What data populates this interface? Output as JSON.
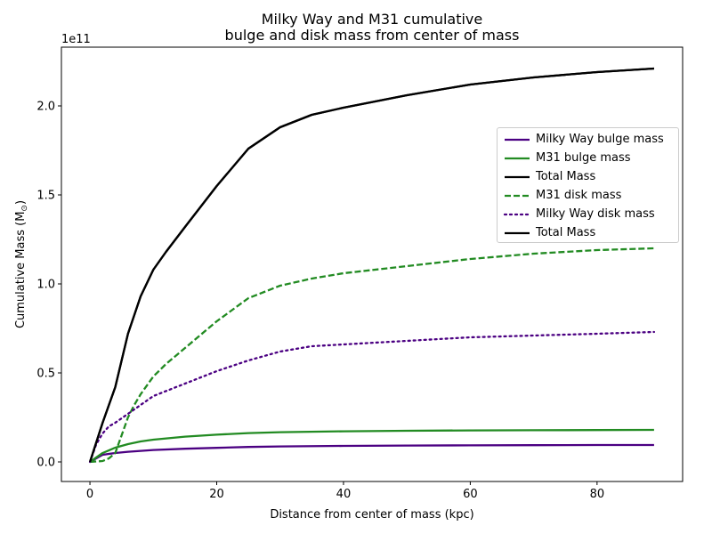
{
  "chart_data": {
    "type": "line",
    "title_line1": "Milky Way and M31 cumulative",
    "title_line2": "bulge and disk mass from center of mass",
    "xlabel": "Distance from center of mass (kpc)",
    "ylabel": "Cumulative Mass (M",
    "ylabel_sub": "⊙",
    "ylabel_end": ")",
    "offset_text": "1e11",
    "xlim": [
      -4.5,
      93.5
    ],
    "ylim": [
      -0.11,
      2.33
    ],
    "x_ticks": [
      0,
      20,
      40,
      60,
      80
    ],
    "x_tick_labels": [
      "0",
      "20",
      "40",
      "60",
      "80"
    ],
    "y_ticks": [
      0,
      0.5,
      1.0,
      1.5,
      2.0
    ],
    "y_tick_labels": [
      "0.0",
      "0.5",
      "1.0",
      "1.5",
      "2.0"
    ],
    "grid": false,
    "legend_placement": "center-right",
    "series": [
      {
        "name": "Milky Way bulge mass",
        "color": "#4b0082",
        "style": "solid",
        "x": [
          0,
          2,
          4,
          6,
          8,
          10,
          15,
          20,
          25,
          30,
          40,
          50,
          60,
          70,
          80,
          89
        ],
        "y": [
          0,
          0.04,
          0.05,
          0.057,
          0.062,
          0.067,
          0.074,
          0.079,
          0.084,
          0.087,
          0.09,
          0.092,
          0.093,
          0.094,
          0.095,
          0.095
        ]
      },
      {
        "name": "M31 bulge mass",
        "color": "#228b22",
        "style": "solid",
        "x": [
          0,
          2,
          4,
          6,
          8,
          10,
          15,
          20,
          25,
          30,
          40,
          50,
          60,
          70,
          80,
          89
        ],
        "y": [
          0,
          0.05,
          0.08,
          0.1,
          0.115,
          0.125,
          0.142,
          0.153,
          0.162,
          0.167,
          0.172,
          0.175,
          0.177,
          0.178,
          0.179,
          0.18
        ]
      },
      {
        "name": "Total Mass",
        "color": "#000000",
        "style": "solid",
        "x": [
          0,
          2,
          4,
          6,
          8,
          10,
          12,
          15,
          20,
          25,
          30,
          35,
          40,
          50,
          60,
          70,
          80,
          89
        ],
        "y": [
          0,
          0.22,
          0.42,
          0.72,
          0.93,
          1.08,
          1.18,
          1.32,
          1.55,
          1.76,
          1.88,
          1.95,
          1.99,
          2.06,
          2.12,
          2.16,
          2.19,
          2.21
        ]
      },
      {
        "name": "M31 disk mass",
        "color": "#228b22",
        "style": "dashed",
        "x": [
          0,
          2,
          3,
          4,
          5,
          6,
          7,
          8,
          10,
          12,
          15,
          20,
          25,
          30,
          35,
          40,
          50,
          60,
          70,
          80,
          89
        ],
        "y": [
          0,
          0.005,
          0.02,
          0.05,
          0.15,
          0.25,
          0.32,
          0.38,
          0.48,
          0.55,
          0.64,
          0.79,
          0.92,
          0.99,
          1.03,
          1.06,
          1.1,
          1.14,
          1.17,
          1.19,
          1.2
        ]
      },
      {
        "name": "Milky Way disk mass",
        "color": "#4b0082",
        "style": "dotted",
        "x": [
          0,
          1,
          2,
          3,
          4,
          6,
          8,
          10,
          15,
          20,
          25,
          30,
          35,
          40,
          50,
          60,
          70,
          80,
          89
        ],
        "y": [
          0,
          0.1,
          0.16,
          0.2,
          0.22,
          0.27,
          0.32,
          0.37,
          0.44,
          0.51,
          0.57,
          0.62,
          0.65,
          0.66,
          0.68,
          0.7,
          0.71,
          0.72,
          0.73
        ]
      },
      {
        "name": "Total Mass",
        "color": "#000000",
        "style": "solid",
        "x": [
          0,
          2,
          4,
          6,
          8,
          10,
          12,
          15,
          20,
          25,
          30,
          35,
          40,
          50,
          60,
          70,
          80,
          89
        ],
        "y": [
          0,
          0.22,
          0.42,
          0.72,
          0.93,
          1.08,
          1.18,
          1.32,
          1.55,
          1.76,
          1.88,
          1.95,
          1.99,
          2.06,
          2.12,
          2.16,
          2.19,
          2.21
        ]
      }
    ]
  }
}
